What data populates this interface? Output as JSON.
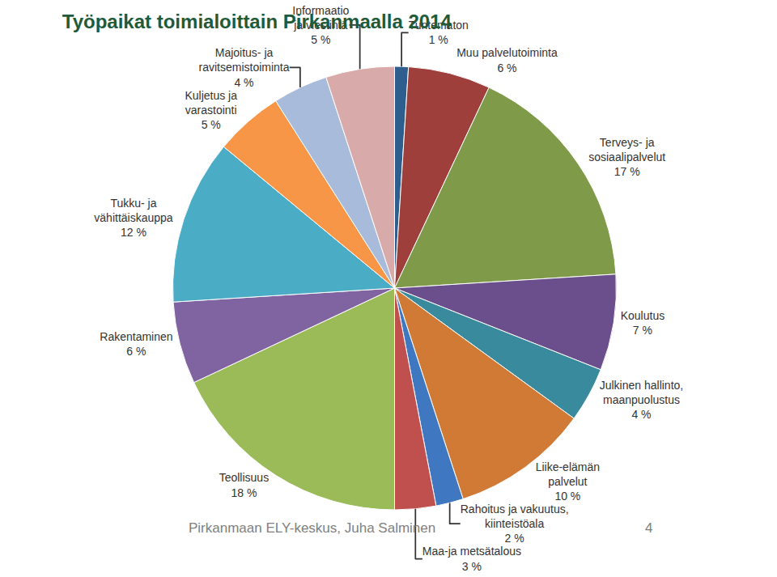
{
  "chart_data": {
    "type": "pie",
    "title": "Työpaikat toimialoittain Pirkanmaalla 2014",
    "categories": [
      "Tuntematon",
      "Muu palvelutoiminta",
      "Terveys- ja sosiaalipalvelut",
      "Koulutus",
      "Julkinen hallinto, maanpuolustus",
      "Liike-elämän palvelut",
      "Rahoitus ja vakuutus, kiinteistöala",
      "Maa-ja metsätalous",
      "Teollisuus",
      "Rakentaminen",
      "Tukku- ja vähittäiskauppa",
      "Kuljetus ja varastointi",
      "Majoitus- ja ravitsemistoiminta",
      "Informaatio ja viestintä"
    ],
    "values": [
      1,
      6,
      17,
      7,
      4,
      10,
      2,
      3,
      18,
      6,
      12,
      5,
      4,
      5
    ],
    "value_labels": [
      "1 %",
      "6 %",
      "17 %",
      "7 %",
      "4 %",
      "10 %",
      "2 %",
      "3 %",
      "18 %",
      "6 %",
      "12 %",
      "5 %",
      "4 %",
      "5 %"
    ],
    "colors": [
      "#2e5e8e",
      "#9e3f3c",
      "#7f9a48",
      "#6a4f8c",
      "#3a8a9e",
      "#d17a36",
      "#3f78c0",
      "#c0504d",
      "#9bbb59",
      "#8064a2",
      "#4bacc6",
      "#f79646",
      "#a9bbdb",
      "#d9aaaa"
    ],
    "data_labels": true,
    "annotations": [
      "Pirkanmaan ELY-keskus, Juha Salminen",
      "4"
    ]
  }
}
